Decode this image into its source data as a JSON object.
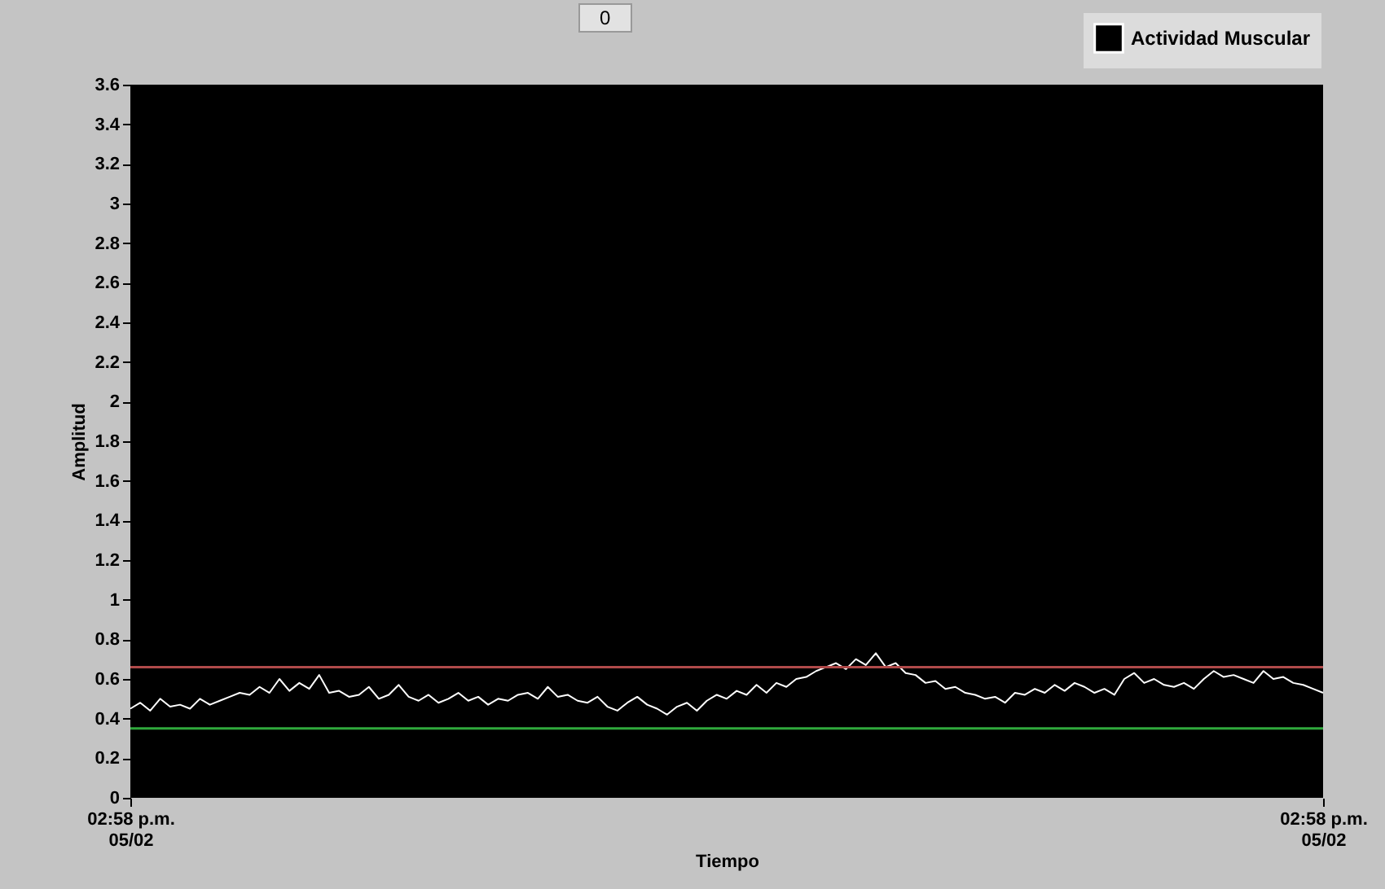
{
  "chart_data": {
    "type": "line",
    "xlabel": "Tiempo",
    "ylabel": "Amplitud",
    "annotations": [
      "0"
    ],
    "categories": [
      "02:58 p.m.\n05/02",
      null,
      null,
      null,
      null,
      null,
      null,
      null,
      null,
      null,
      null,
      null,
      null,
      null,
      null,
      null,
      null,
      null,
      null,
      null,
      null,
      null,
      null,
      null,
      null,
      null,
      null,
      null,
      null,
      null,
      null,
      null,
      null,
      null,
      null,
      null,
      null,
      null,
      null,
      null,
      null,
      null,
      null,
      null,
      null,
      null,
      null,
      null,
      null,
      null,
      null,
      null,
      null,
      null,
      null,
      null,
      null,
      null,
      null,
      null,
      null,
      null,
      null,
      null,
      null,
      null,
      null,
      null,
      null,
      null,
      null,
      null,
      null,
      null,
      null,
      null,
      null,
      null,
      null,
      null,
      null,
      null,
      null,
      null,
      null,
      null,
      null,
      null,
      null,
      null,
      null,
      null,
      null,
      null,
      null,
      null,
      null,
      null,
      null,
      null,
      null,
      null,
      null,
      null,
      null,
      null,
      null,
      null,
      null,
      null,
      null,
      null,
      null,
      null,
      null,
      null,
      null,
      null,
      null,
      null,
      "02:58 p.m.\n05/02"
    ],
    "series": [
      {
        "name": "Actividad Muscular",
        "color": "#ffffff",
        "values": [
          0.45,
          0.48,
          0.44,
          0.5,
          0.46,
          0.47,
          0.45,
          0.5,
          0.47,
          0.49,
          0.51,
          0.53,
          0.52,
          0.56,
          0.53,
          0.6,
          0.54,
          0.58,
          0.55,
          0.62,
          0.53,
          0.54,
          0.51,
          0.52,
          0.56,
          0.5,
          0.52,
          0.57,
          0.51,
          0.49,
          0.52,
          0.48,
          0.5,
          0.53,
          0.49,
          0.51,
          0.47,
          0.5,
          0.49,
          0.52,
          0.53,
          0.5,
          0.56,
          0.51,
          0.52,
          0.49,
          0.48,
          0.51,
          0.46,
          0.44,
          0.48,
          0.51,
          0.47,
          0.45,
          0.42,
          0.46,
          0.48,
          0.44,
          0.49,
          0.52,
          0.5,
          0.54,
          0.52,
          0.57,
          0.53,
          0.58,
          0.56,
          0.6,
          0.61,
          0.64,
          0.66,
          0.68,
          0.65,
          0.7,
          0.67,
          0.73,
          0.66,
          0.68,
          0.63,
          0.62,
          0.58,
          0.59,
          0.55,
          0.56,
          0.53,
          0.52,
          0.5,
          0.51,
          0.48,
          0.53,
          0.52,
          0.55,
          0.53,
          0.57,
          0.54,
          0.58,
          0.56,
          0.53,
          0.55,
          0.52,
          0.6,
          0.63,
          0.58,
          0.6,
          0.57,
          0.56,
          0.58,
          0.55,
          0.6,
          0.64,
          0.61,
          0.62,
          0.6,
          0.58,
          0.64,
          0.6,
          0.61,
          0.58,
          0.57,
          0.55,
          0.53
        ]
      }
    ],
    "ylim": [
      0,
      3.6
    ],
    "yticks": [
      0,
      0.2,
      0.4,
      0.6,
      0.8,
      1,
      1.2,
      1.4,
      1.6,
      1.8,
      2,
      2.2,
      2.4,
      2.6,
      2.8,
      3,
      3.2,
      3.4,
      3.6
    ],
    "ref_lines": [
      {
        "axis": "y",
        "value": 0.66,
        "color": "#b04a4a"
      },
      {
        "axis": "y",
        "value": 0.35,
        "color": "#2fa83c"
      }
    ],
    "grid": false,
    "legend": "top right",
    "marker": "none",
    "line_style": "solid"
  }
}
